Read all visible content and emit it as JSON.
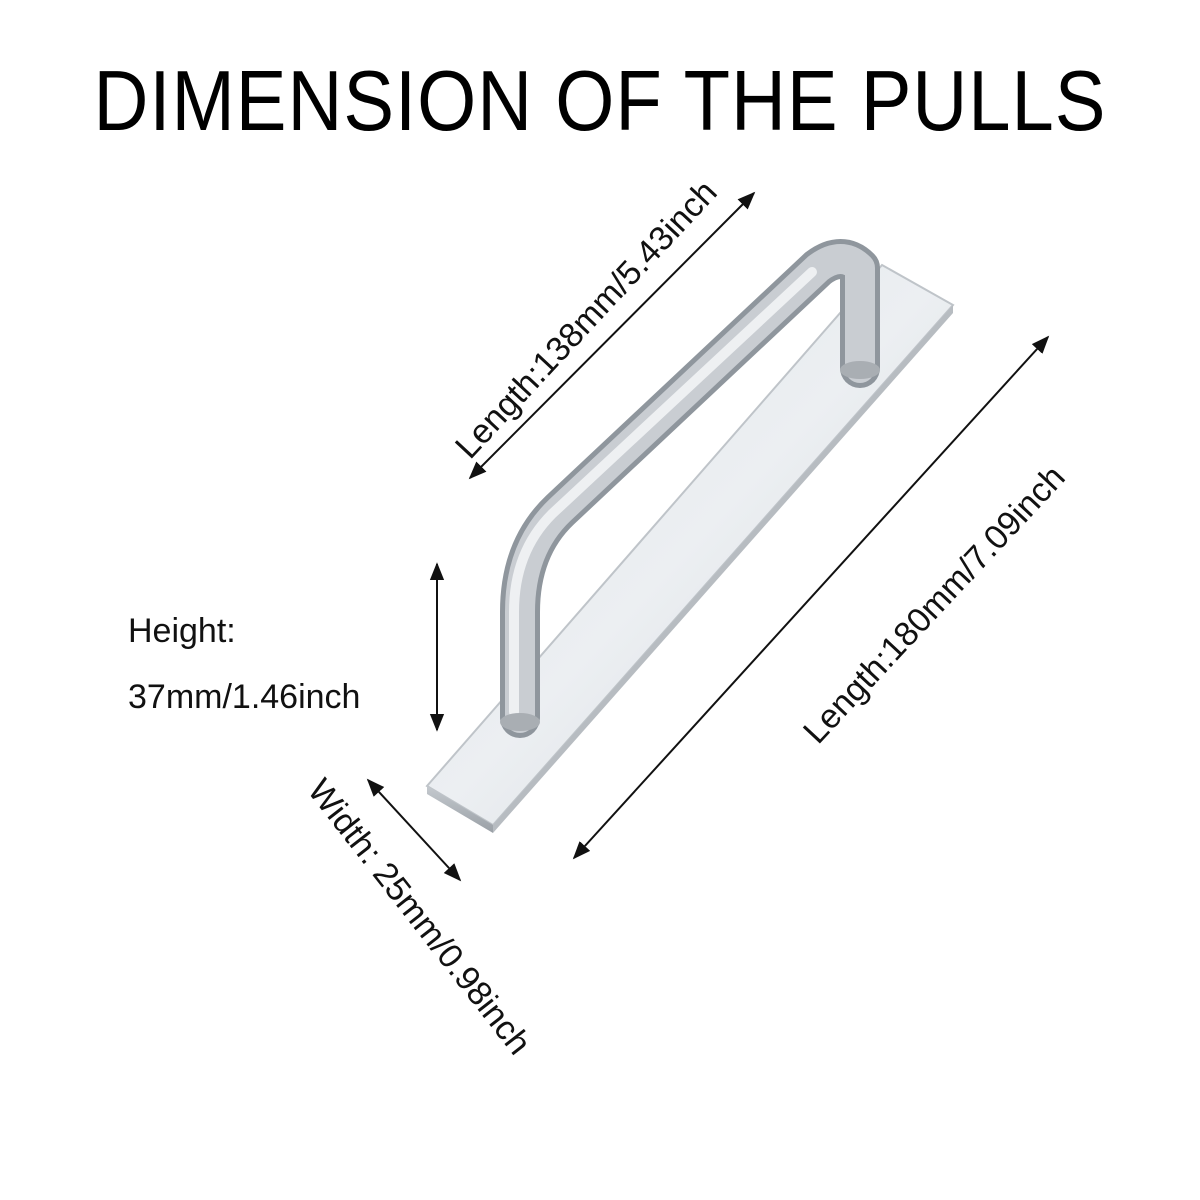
{
  "title": "DIMENSION OF THE PULLS",
  "dimensions": {
    "handle_length": "Length:138mm/5.43inch",
    "base_length": "Length:180mm/7.09inch",
    "height_label": "Height:",
    "height_value": "37mm/1.46inch",
    "width": "Width: 25mm/0.98inch"
  },
  "colors": {
    "background": "#ffffff",
    "text": "#000000",
    "metal_light": "#e9ecef",
    "metal_dark": "#9aa0a6"
  },
  "product": "aluminum-pull-handle"
}
